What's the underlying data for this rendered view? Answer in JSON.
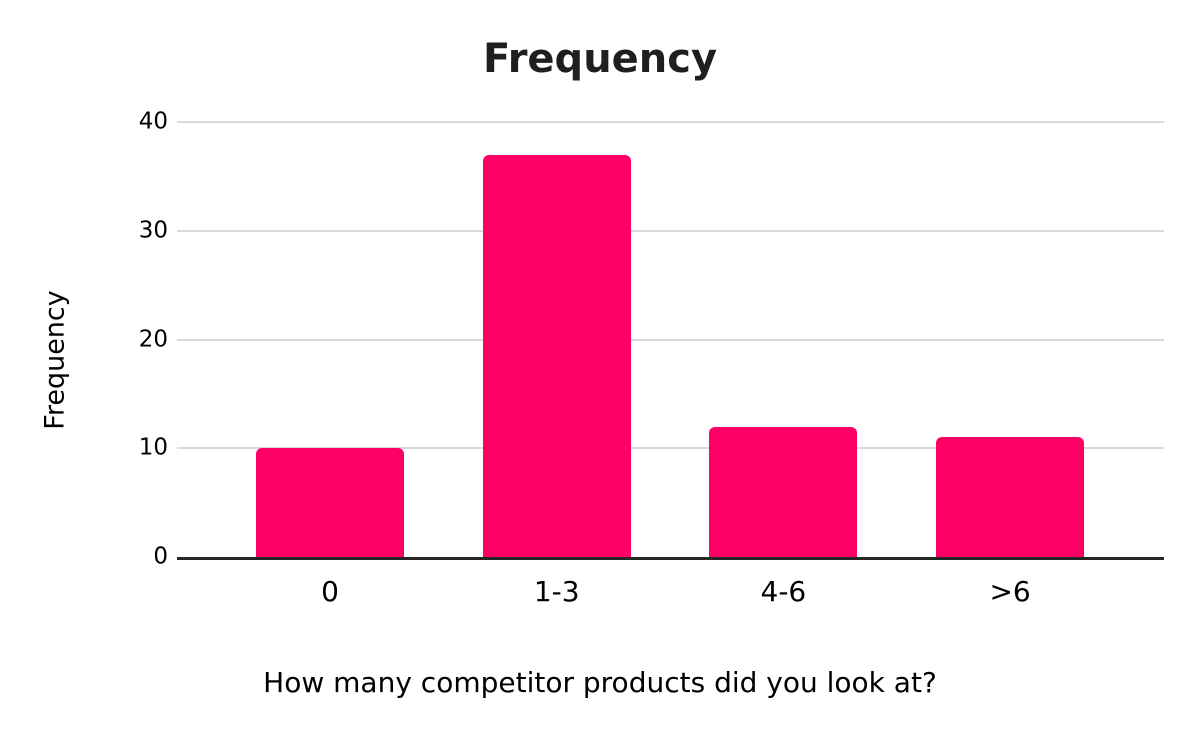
{
  "chart_data": {
    "type": "bar",
    "title": "Frequency",
    "xlabel": "How many competitor products did you look at?",
    "ylabel": "Frequency",
    "categories": [
      "0",
      "1-3",
      "4-6",
      ">6"
    ],
    "values": [
      10,
      37,
      12,
      11
    ],
    "ylim": [
      0,
      40
    ],
    "yticks": [
      0,
      10,
      20,
      30,
      40
    ],
    "grid": "horizontal",
    "legend": "none",
    "bar_color": "#FF0066",
    "gridline_color": "#D9D9D9",
    "axis_line_color": "#262626",
    "text_color": "#000000",
    "title_color": "#1F1F1F"
  }
}
